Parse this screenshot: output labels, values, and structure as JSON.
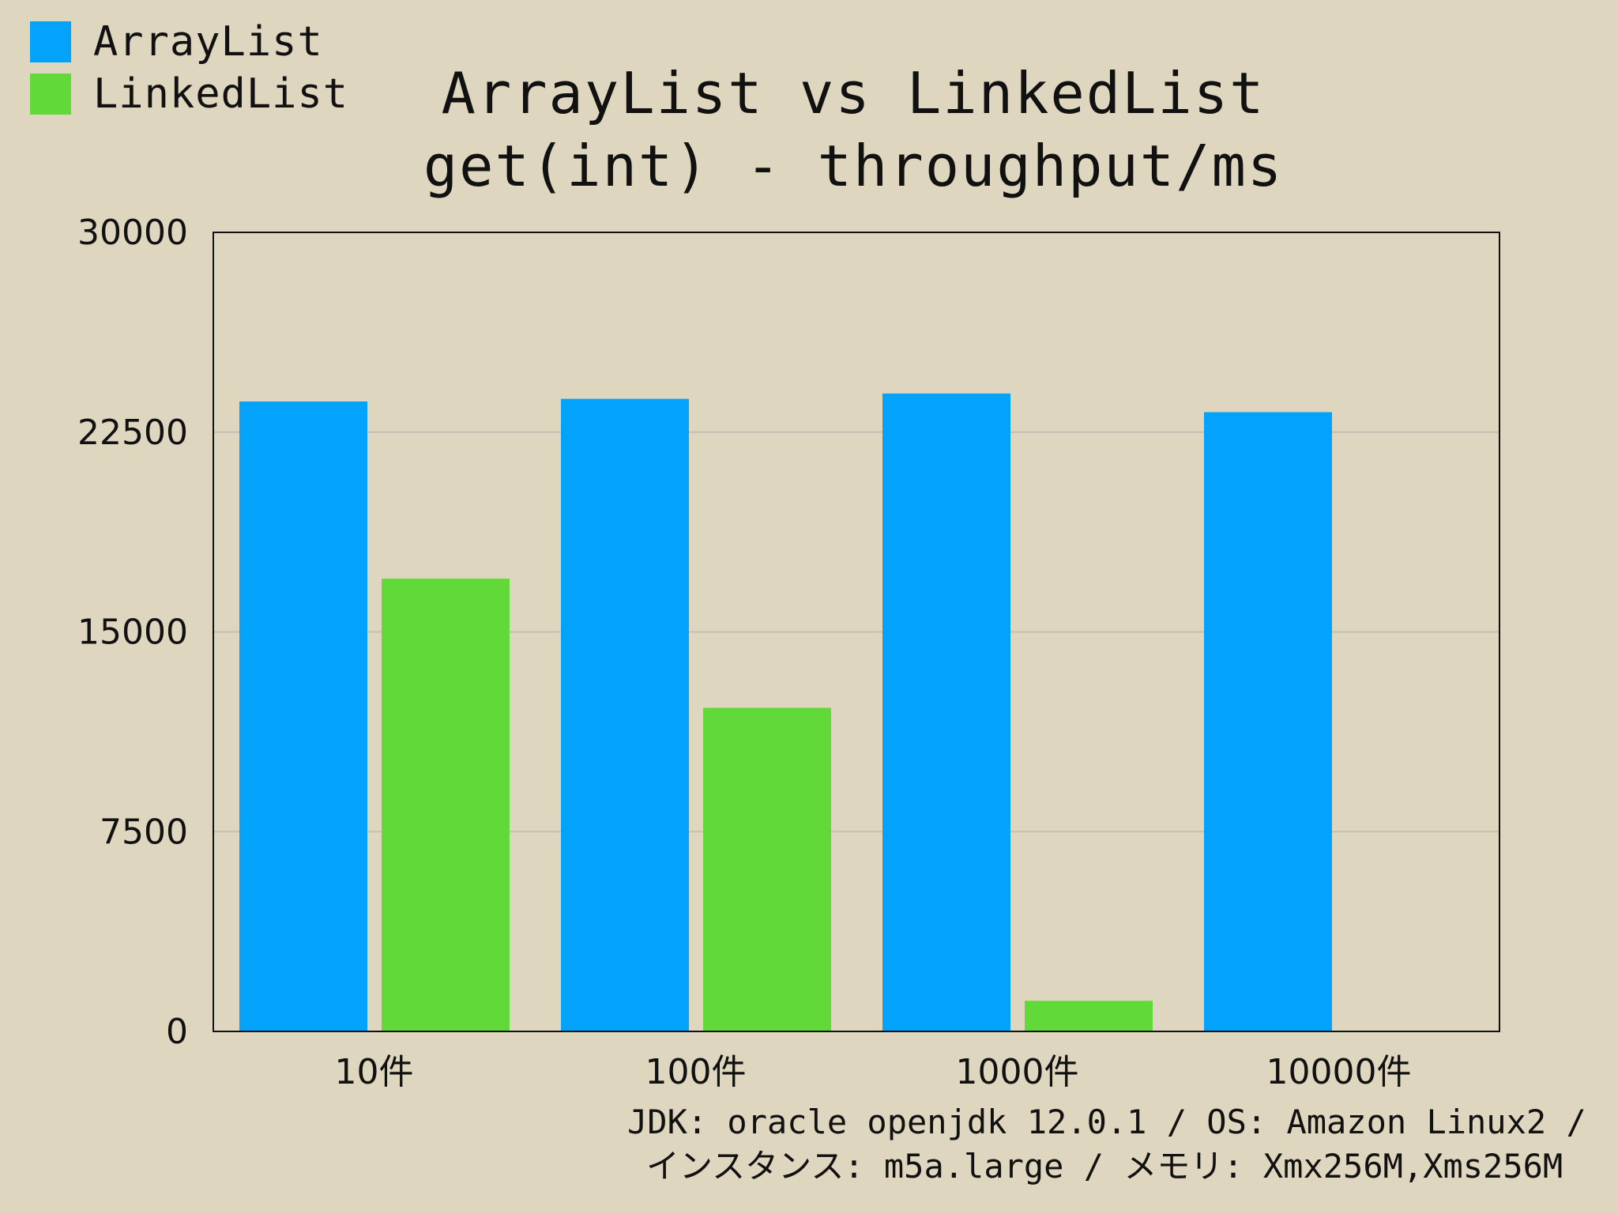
{
  "legend": [
    {
      "name": "ArrayList",
      "color": "#03a3fb"
    },
    {
      "name": "LinkedList",
      "color": "#61d939"
    }
  ],
  "title_line1": "ArrayList vs LinkedList",
  "title_line2": "get(int) - throughput/ms",
  "footnote_line1": "JDK: oracle openjdk 12.0.1 / OS: Amazon Linux2 /",
  "footnote_line2": "インスタンス: m5a.large / メモリ: Xmx256M,Xms256M",
  "chart_data": {
    "type": "bar",
    "title": "ArrayList vs LinkedList get(int) - throughput/ms",
    "categories": [
      "10件",
      "100件",
      "1000件",
      "10000件"
    ],
    "series": [
      {
        "name": "ArrayList",
        "color": "#03a3fb",
        "values": [
          23650,
          23750,
          23950,
          23250
        ]
      },
      {
        "name": "LinkedList",
        "color": "#61d939",
        "values": [
          17000,
          12150,
          1150,
          0
        ]
      }
    ],
    "ylim": [
      0,
      30000
    ],
    "yticks": [
      0,
      7500,
      15000,
      22500,
      30000
    ],
    "ytick_labels": [
      "0",
      "7500",
      "15000",
      "22500",
      "30000"
    ],
    "xlabel": "",
    "ylabel": "",
    "grid": true,
    "grid_color": "#c4bfb4",
    "legend_position": "top-left",
    "background": "#ded6bf"
  }
}
